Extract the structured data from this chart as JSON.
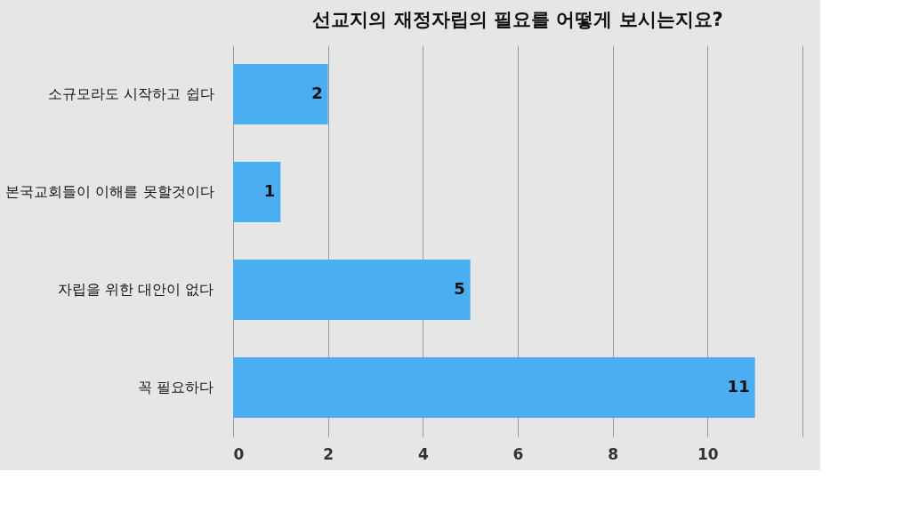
{
  "chart_data": {
    "type": "bar",
    "orientation": "horizontal",
    "title": "선교지의 재정자립의 필요를 어떻게 보시는지요?",
    "categories": [
      "소규모라도 시작하고 쉽다",
      "본국교회들이 이해를 못할것이다",
      "자립을 위한 대안이 없다",
      "꼭 필요하다"
    ],
    "values": [
      2,
      1,
      5,
      11
    ],
    "color": "#4baef0",
    "xlim": [
      0,
      12
    ],
    "xticks": [
      0,
      2,
      4,
      6,
      8,
      10,
      {
        "value": 12,
        "label": null
      }
    ],
    "grid": "x",
    "data_labels": true
  }
}
